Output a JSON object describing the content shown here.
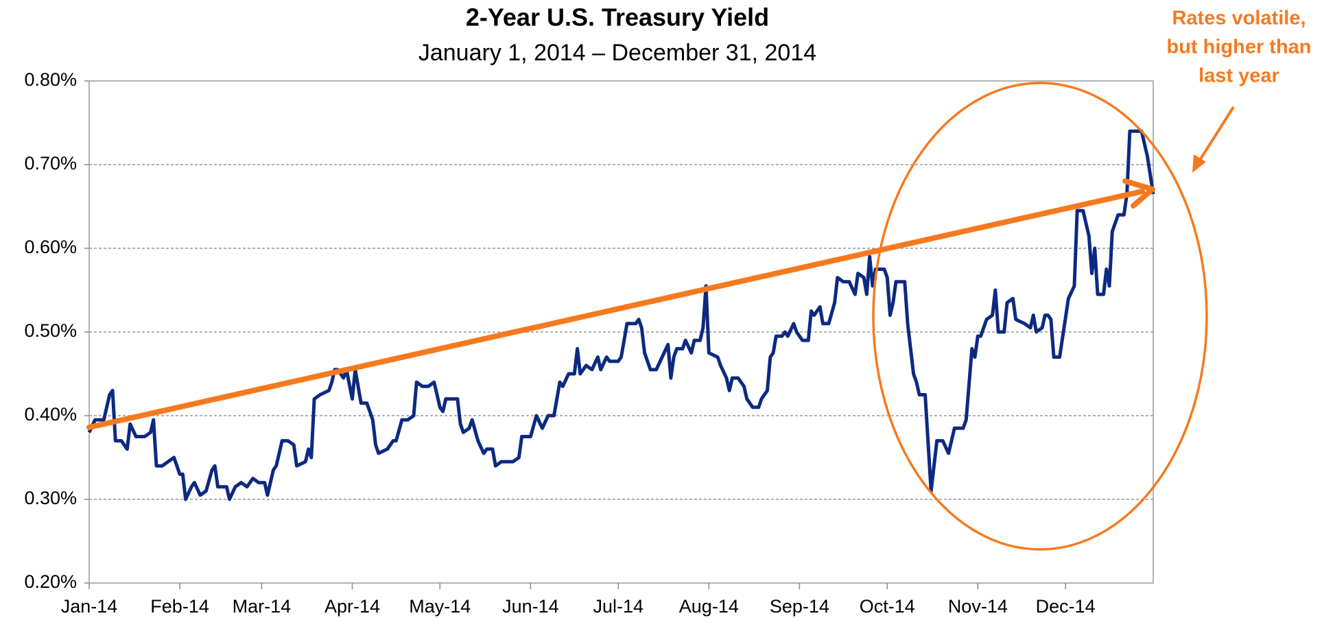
{
  "chart_data": {
    "type": "line",
    "title": "2-Year U.S. Treasury Yield",
    "subtitle": "January 1, 2014 – December 31, 2014",
    "annotation": [
      "Rates volatile,",
      "but higher than",
      "last year"
    ],
    "color": "#0d2a80",
    "grid": true,
    "xlim": [
      0,
      364
    ],
    "xticks": [
      {
        "value": 0,
        "label": "Jan-14"
      },
      {
        "value": 31,
        "label": "Feb-14"
      },
      {
        "value": 59,
        "label": "Mar-14"
      },
      {
        "value": 90,
        "label": "Apr-14"
      },
      {
        "value": 120,
        "label": "May-14"
      },
      {
        "value": 151,
        "label": "Jun-14"
      },
      {
        "value": 181,
        "label": "Jul-14"
      },
      {
        "value": 212,
        "label": "Aug-14"
      },
      {
        "value": 243,
        "label": "Sep-14"
      },
      {
        "value": 273,
        "label": "Oct-14"
      },
      {
        "value": 304,
        "label": "Nov-14"
      },
      {
        "value": 334,
        "label": "Dec-14"
      }
    ],
    "ylim": [
      0.2,
      0.8
    ],
    "yticks": [
      {
        "value": 0.2,
        "label": "0.20%"
      },
      {
        "value": 0.3,
        "label": "0.30%"
      },
      {
        "value": 0.4,
        "label": "0.40%"
      },
      {
        "value": 0.5,
        "label": "0.50%"
      },
      {
        "value": 0.6,
        "label": "0.60%"
      },
      {
        "value": 0.7,
        "label": "0.70%"
      },
      {
        "value": 0.8,
        "label": "0.80%"
      }
    ],
    "x": [
      0,
      2,
      5,
      7,
      8,
      9,
      11,
      13,
      14,
      16,
      19,
      21,
      22,
      23,
      25,
      27,
      29,
      31,
      32,
      33,
      35,
      36,
      38,
      40,
      42,
      43,
      44,
      47,
      48,
      50,
      52,
      54,
      56,
      58,
      60,
      61,
      63,
      64,
      66,
      68,
      70,
      71,
      74,
      75,
      76,
      77,
      79,
      82,
      83,
      84,
      85,
      87,
      88,
      90,
      91,
      93,
      95,
      97,
      98,
      99,
      102,
      104,
      105,
      107,
      109,
      111,
      112,
      114,
      116,
      118,
      120,
      121,
      122,
      124,
      126,
      127,
      128,
      130,
      131,
      133,
      135,
      136,
      138,
      139,
      141,
      145,
      147,
      148,
      151,
      153,
      155,
      157,
      159,
      161,
      162,
      164,
      166,
      167,
      168,
      170,
      172,
      174,
      175,
      177,
      178,
      181,
      182,
      184,
      187,
      188,
      189,
      190,
      192,
      194,
      196,
      198,
      199,
      200,
      201,
      203,
      204,
      206,
      207,
      209,
      210,
      211,
      212,
      215,
      216,
      218,
      219,
      220,
      222,
      224,
      225,
      227,
      229,
      230,
      232,
      233,
      234,
      235,
      237,
      238,
      239,
      241,
      242,
      244,
      246,
      247,
      248,
      250,
      251,
      253,
      255,
      256,
      258,
      260,
      262,
      263,
      265,
      266,
      267,
      268,
      269,
      272,
      273,
      274,
      275,
      276,
      279,
      280,
      282,
      283,
      284,
      286,
      288,
      290,
      292,
      294,
      295,
      296,
      299,
      300,
      302,
      303,
      304,
      305,
      307,
      309,
      310,
      311,
      313,
      314,
      316,
      317,
      320,
      322,
      323,
      324,
      326,
      327,
      328,
      329,
      330,
      332,
      335,
      337,
      338,
      340,
      342,
      343,
      344,
      345,
      347,
      348,
      349,
      350,
      352,
      354,
      355,
      356,
      360,
      362,
      364
    ],
    "values": [
      0.38,
      0.395,
      0.395,
      0.425,
      0.43,
      0.37,
      0.37,
      0.36,
      0.39,
      0.375,
      0.375,
      0.38,
      0.395,
      0.34,
      0.34,
      0.345,
      0.35,
      0.33,
      0.33,
      0.3,
      0.315,
      0.32,
      0.305,
      0.31,
      0.335,
      0.34,
      0.315,
      0.315,
      0.3,
      0.315,
      0.32,
      0.315,
      0.325,
      0.32,
      0.32,
      0.305,
      0.335,
      0.34,
      0.37,
      0.37,
      0.365,
      0.34,
      0.345,
      0.36,
      0.35,
      0.42,
      0.425,
      0.43,
      0.44,
      0.455,
      0.455,
      0.445,
      0.455,
      0.42,
      0.455,
      0.415,
      0.415,
      0.395,
      0.365,
      0.355,
      0.36,
      0.37,
      0.37,
      0.395,
      0.395,
      0.4,
      0.44,
      0.435,
      0.435,
      0.44,
      0.41,
      0.405,
      0.42,
      0.42,
      0.42,
      0.39,
      0.38,
      0.385,
      0.395,
      0.37,
      0.355,
      0.36,
      0.36,
      0.34,
      0.345,
      0.345,
      0.35,
      0.375,
      0.375,
      0.4,
      0.385,
      0.4,
      0.4,
      0.44,
      0.435,
      0.45,
      0.45,
      0.48,
      0.45,
      0.46,
      0.455,
      0.47,
      0.455,
      0.47,
      0.465,
      0.465,
      0.47,
      0.51,
      0.51,
      0.515,
      0.505,
      0.475,
      0.455,
      0.455,
      0.47,
      0.485,
      0.445,
      0.47,
      0.48,
      0.48,
      0.49,
      0.475,
      0.49,
      0.49,
      0.505,
      0.555,
      0.475,
      0.47,
      0.46,
      0.445,
      0.43,
      0.445,
      0.445,
      0.435,
      0.42,
      0.41,
      0.41,
      0.42,
      0.43,
      0.47,
      0.475,
      0.495,
      0.495,
      0.5,
      0.495,
      0.51,
      0.5,
      0.49,
      0.49,
      0.525,
      0.52,
      0.53,
      0.51,
      0.51,
      0.535,
      0.565,
      0.56,
      0.56,
      0.545,
      0.57,
      0.565,
      0.545,
      0.59,
      0.555,
      0.575,
      0.575,
      0.565,
      0.52,
      0.535,
      0.56,
      0.56,
      0.51,
      0.45,
      0.44,
      0.425,
      0.425,
      0.31,
      0.37,
      0.37,
      0.355,
      0.37,
      0.385,
      0.385,
      0.395,
      0.48,
      0.47,
      0.495,
      0.495,
      0.515,
      0.52,
      0.55,
      0.5,
      0.5,
      0.535,
      0.54,
      0.515,
      0.51,
      0.505,
      0.52,
      0.5,
      0.505,
      0.52,
      0.52,
      0.515,
      0.47,
      0.47,
      0.54,
      0.555,
      0.645,
      0.645,
      0.615,
      0.57,
      0.6,
      0.545,
      0.545,
      0.575,
      0.555,
      0.62,
      0.64,
      0.64,
      0.665,
      0.74,
      0.74,
      0.71,
      0.665
    ]
  }
}
